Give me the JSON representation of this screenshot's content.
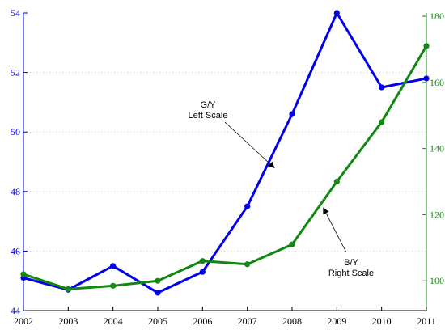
{
  "chart_data": {
    "type": "line",
    "x": [
      2002,
      2003,
      2004,
      2005,
      2006,
      2007,
      2008,
      2009,
      2010,
      2011
    ],
    "xlim": [
      2002,
      2011
    ],
    "grid": "horizontal dotted",
    "left_axis": {
      "ylim": [
        44,
        54
      ],
      "ticks": [
        44,
        46,
        48,
        50,
        52,
        54
      ],
      "color": "#0000ee"
    },
    "right_axis": {
      "ylim": [
        91,
        181
      ],
      "ticks": [
        100,
        120,
        140,
        160,
        180
      ],
      "color": "#118811"
    },
    "series": [
      {
        "axis": "left",
        "color": "#0000ee",
        "values": [
          45.1,
          44.7,
          45.5,
          44.6,
          45.3,
          47.5,
          50.6,
          54.0,
          51.5,
          51.8
        ]
      },
      {
        "axis": "right",
        "color": "#118811",
        "values": [
          102,
          97.5,
          98.5,
          100,
          106,
          105,
          111,
          130,
          148,
          171
        ]
      }
    ],
    "annotations": [
      {
        "lines": [
          "G/Y",
          "Left Scale"
        ],
        "arrow_to": {
          "axis": "left",
          "x": 2007.6,
          "y": 48.8
        }
      },
      {
        "lines": [
          "B/Y",
          "Right Scale"
        ],
        "arrow_to": {
          "axis": "right",
          "x": 2008.7,
          "y": 122
        }
      }
    ]
  }
}
